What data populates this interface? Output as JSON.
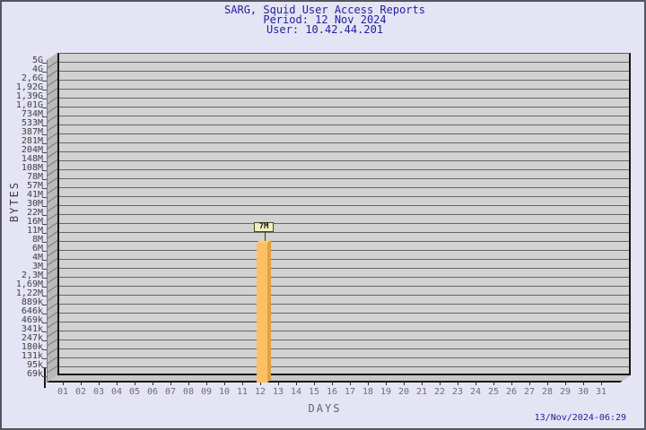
{
  "page": {
    "background_color": "#e4e4f5",
    "border_color": "#55555d",
    "timestamp": "13/Nov/2024-06:29"
  },
  "header": {
    "title": "SARG, Squid User Access Reports",
    "period_line": "Period: 12 Nov 2024",
    "user_line": "User: 10.42.44.201",
    "text_color": "#22229b"
  },
  "chart_data": {
    "type": "bar",
    "title": "SARG, Squid User Access Reports",
    "subtitle": [
      "Period: 12 Nov 2024",
      "User: 10.42.44.201"
    ],
    "xlabel": "DAYS",
    "ylabel": "BYTES",
    "scale": "logarithmic-like",
    "grid": "horizontal",
    "legend_position": "none",
    "categories": [
      "01",
      "02",
      "03",
      "04",
      "05",
      "06",
      "07",
      "08",
      "09",
      "10",
      "11",
      "12",
      "13",
      "14",
      "15",
      "16",
      "17",
      "18",
      "19",
      "20",
      "21",
      "22",
      "23",
      "24",
      "25",
      "26",
      "27",
      "28",
      "29",
      "30",
      "31"
    ],
    "values": [
      0,
      0,
      0,
      0,
      0,
      0,
      0,
      0,
      0,
      0,
      0,
      7000000,
      0,
      0,
      0,
      0,
      0,
      0,
      0,
      0,
      0,
      0,
      0,
      0,
      0,
      0,
      0,
      0,
      0,
      0,
      0
    ],
    "bar_day": "12",
    "bar_value_label": "7M",
    "bar_value_bytes": 7000000,
    "y_ticks": [
      "5G",
      "4G",
      "2,6G",
      "1,92G",
      "1,39G",
      "1,01G",
      "734M",
      "533M",
      "387M",
      "281M",
      "204M",
      "148M",
      "108M",
      "78M",
      "57M",
      "41M",
      "30M",
      "22M",
      "16M",
      "11M",
      "8M",
      "6M",
      "4M",
      "3M",
      "2,3M",
      "1,69M",
      "1,22M",
      "889k",
      "646k",
      "469k",
      "341k",
      "247k",
      "180k",
      "131k",
      "95k",
      "69k"
    ],
    "ylim": [
      "69k",
      "5G"
    ],
    "colors": {
      "bar_front": "#fcbf63",
      "bar_side": "#dfa143",
      "bar_top": "#eecf8c",
      "value_box_bg": "#f2eebf",
      "plot_back": "#d2d2d2",
      "plot_wall": "#b9b9b9",
      "plot_floor": "#c7c7c7",
      "gridline": "#666668"
    }
  }
}
